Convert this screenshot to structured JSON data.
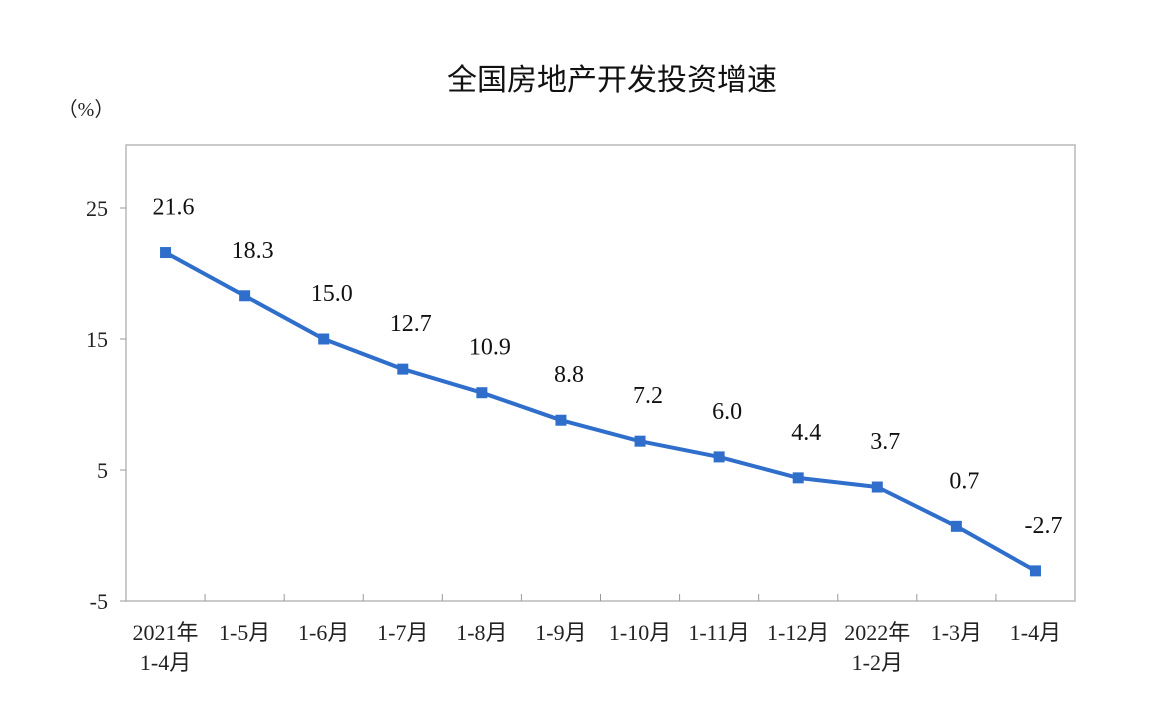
{
  "chart_data": {
    "type": "line",
    "title": "全国房地产开发投资增速",
    "unit_label": "（%）",
    "xlabel": "",
    "ylabel": "",
    "ylim": [
      -5,
      30
    ],
    "yticks": [
      -5,
      5,
      15,
      25
    ],
    "grid": false,
    "line_color": "#2f6fcb",
    "categories": [
      {
        "line1": "2021年",
        "line2": "1-4月"
      },
      {
        "line1": "1-5月",
        "line2": ""
      },
      {
        "line1": "1-6月",
        "line2": ""
      },
      {
        "line1": "1-7月",
        "line2": ""
      },
      {
        "line1": "1-8月",
        "line2": ""
      },
      {
        "line1": "1-9月",
        "line2": ""
      },
      {
        "line1": "1-10月",
        "line2": ""
      },
      {
        "line1": "1-11月",
        "line2": ""
      },
      {
        "line1": "1-12月",
        "line2": ""
      },
      {
        "line1": "2022年",
        "line2": "1-2月"
      },
      {
        "line1": "1-3月",
        "line2": ""
      },
      {
        "line1": "1-4月",
        "line2": ""
      }
    ],
    "values": [
      21.6,
      18.3,
      15.0,
      12.7,
      10.9,
      8.8,
      7.2,
      6.0,
      4.4,
      3.7,
      0.7,
      -2.7
    ],
    "data_labels": [
      "21.6",
      "18.3",
      "15.0",
      "12.7",
      "10.9",
      "8.8",
      "7.2",
      "6.0",
      "4.4",
      "3.7",
      "0.7",
      "-2.7"
    ]
  }
}
